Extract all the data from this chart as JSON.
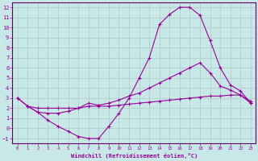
{
  "xlabel": "Windchill (Refroidissement éolien,°C)",
  "background_color": "#c8e8e8",
  "grid_color": "#b0c8c8",
  "line_color": "#990099",
  "spine_color": "#660066",
  "xlim": [
    -0.5,
    23.5
  ],
  "ylim": [
    -1.5,
    12.5
  ],
  "xticks": [
    0,
    1,
    2,
    3,
    4,
    5,
    6,
    7,
    8,
    9,
    10,
    11,
    12,
    13,
    14,
    15,
    16,
    17,
    18,
    19,
    20,
    21,
    22,
    23
  ],
  "yticks": [
    -1,
    0,
    1,
    2,
    3,
    4,
    5,
    6,
    7,
    8,
    9,
    10,
    11,
    12
  ],
  "curve1_x": [
    0,
    1,
    2,
    3,
    4,
    5,
    6,
    7,
    8,
    9,
    10,
    11,
    12,
    13,
    14,
    15,
    16,
    17,
    18,
    19,
    20,
    21,
    22,
    23
  ],
  "curve1_y": [
    3.0,
    2.2,
    2.0,
    2.0,
    2.0,
    2.0,
    2.0,
    2.2,
    2.2,
    2.2,
    2.3,
    2.4,
    2.5,
    2.6,
    2.7,
    2.8,
    2.9,
    3.0,
    3.1,
    3.2,
    3.2,
    3.3,
    3.3,
    2.5
  ],
  "curve2_x": [
    0,
    1,
    2,
    3,
    4,
    5,
    6,
    7,
    8,
    9,
    10,
    11,
    12,
    13,
    14,
    15,
    16,
    17,
    18,
    19,
    20,
    21,
    22,
    23
  ],
  "curve2_y": [
    3.0,
    2.2,
    1.6,
    0.8,
    0.2,
    -0.3,
    -0.8,
    -1.0,
    -1.0,
    0.2,
    1.5,
    3.0,
    5.0,
    7.0,
    10.3,
    11.3,
    12.0,
    12.0,
    11.2,
    8.7,
    6.0,
    4.3,
    3.7,
    2.5
  ],
  "curve3_x": [
    1,
    2,
    3,
    4,
    5,
    6,
    7,
    8,
    9,
    10,
    11,
    12,
    13,
    14,
    15,
    16,
    17,
    18,
    19,
    20,
    21,
    22,
    23
  ],
  "curve3_y": [
    2.2,
    1.6,
    1.5,
    1.5,
    1.7,
    2.0,
    2.5,
    2.3,
    2.5,
    2.8,
    3.2,
    3.5,
    4.0,
    4.5,
    5.0,
    5.5,
    6.0,
    6.5,
    5.5,
    4.2,
    3.8,
    3.3,
    2.7
  ]
}
